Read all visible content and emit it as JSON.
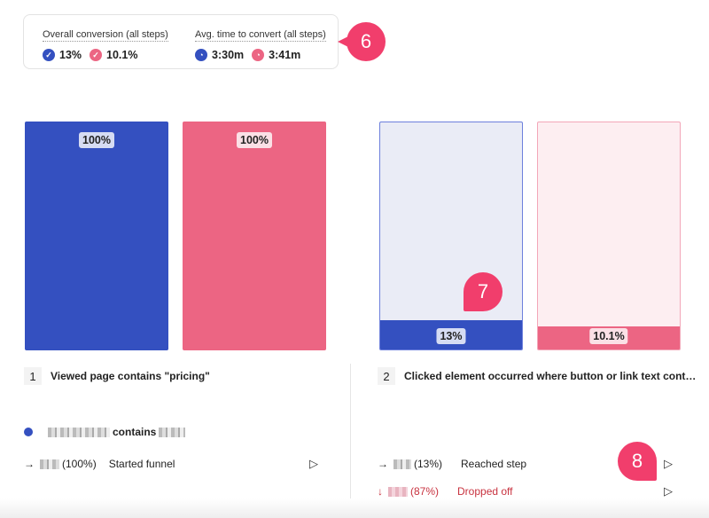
{
  "summary": {
    "conversion_label": "Overall conversion (all steps)",
    "conversion_a": "13%",
    "conversion_b": "10.1%",
    "time_label": "Avg. time to convert (all steps)",
    "time_a": "3:30m",
    "time_b": "3:41m"
  },
  "callouts": [
    "6",
    "7",
    "8"
  ],
  "colors": {
    "series_a": "#3450c0",
    "series_b": "#ec6583",
    "callout": "#f13e6c"
  },
  "steps": [
    {
      "number": "1",
      "title": "Viewed page contains \"pricing\"",
      "bar_a": {
        "percent": 100,
        "label": "100%"
      },
      "bar_b": {
        "percent": 100,
        "label": "100%"
      },
      "filter_text": "contains",
      "rows": [
        {
          "icon": "arrow-right",
          "pct": "(100%)",
          "label": "Started funnel"
        }
      ]
    },
    {
      "number": "2",
      "title": "Clicked element occurred where button or link text cont…",
      "bar_a": {
        "percent": 13,
        "label": "13%"
      },
      "bar_b": {
        "percent": 10.1,
        "label": "10.1%"
      },
      "rows": [
        {
          "icon": "arrow-right",
          "pct": "(13%)",
          "label": "Reached step"
        },
        {
          "icon": "arrow-down",
          "pct": "(87%)",
          "label": "Dropped off"
        }
      ]
    }
  ]
}
